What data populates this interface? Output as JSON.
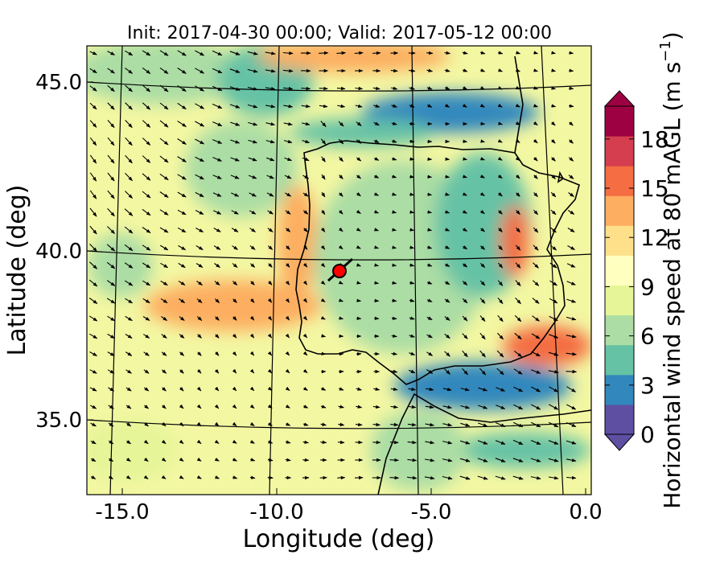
{
  "chart_data": {
    "type": "heatmap",
    "title": "Init: 2017-04-30 00:00; Valid: 2017-05-12 00:00",
    "xlabel": "Longitude (deg)",
    "ylabel": "Latitude (deg)",
    "xlim": [
      -16.0,
      0.3
    ],
    "ylim": [
      32.8,
      46.0
    ],
    "x_ticks": [
      "-15.0",
      "-10.0",
      "-5.0",
      "0.0"
    ],
    "x_tick_values": [
      -15.0,
      -10.0,
      -5.0,
      0.0
    ],
    "y_ticks": [
      "35.0",
      "40.0",
      "45.0"
    ],
    "y_tick_values": [
      35.0,
      40.0,
      45.0
    ],
    "colorbar": {
      "label": "Horizontal wind speed at 80 mAGL (m s",
      "label_sup": "−1",
      "label_close": ")",
      "range": [
        0,
        20
      ],
      "ticks": [
        "0",
        "3",
        "6",
        "9",
        "12",
        "15",
        "18"
      ],
      "tick_values": [
        0,
        3,
        6,
        9,
        12,
        15,
        18
      ],
      "extend": "both",
      "colormap": "Spectral_r",
      "colors": [
        "#5e4fa2",
        "#3288bd",
        "#66c2a5",
        "#abdda4",
        "#e6f598",
        "#ffffbf",
        "#fee08b",
        "#fdae61",
        "#f46d43",
        "#d53e4f",
        "#9e0142"
      ]
    },
    "marker": {
      "lon": -7.7,
      "lat": 39.4,
      "color": "#ff0000"
    },
    "graticule": {
      "meridians": [
        -15,
        -10,
        -5,
        0
      ],
      "parallels": [
        35,
        40,
        45
      ]
    },
    "vector_field": "wind arrows at 80 mAGL"
  }
}
